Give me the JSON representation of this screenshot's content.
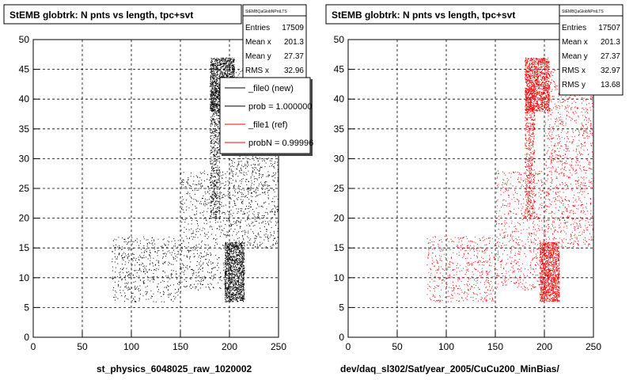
{
  "chart_data": [
    {
      "type": "scatter",
      "title": "StEMB globtrk: N pnts vs length, tpc+svt",
      "xlabel": "st_physics_6048025_raw_1020002",
      "xlim": [
        0,
        250
      ],
      "ylim": [
        0,
        50
      ],
      "xticks": [
        "0",
        "50",
        "100",
        "150",
        "200",
        "250"
      ],
      "yticks": [
        "0",
        "5",
        "10",
        "15",
        "20",
        "25",
        "30",
        "35",
        "40",
        "45",
        "50"
      ],
      "grid": true,
      "marker_color": "#000000",
      "stats": {
        "name": "StEMBQaGlobNPntLTS",
        "rows": [
          {
            "label": "Entries",
            "value": "17509"
          },
          {
            "label": "Mean x",
            "value": "201.3"
          },
          {
            "label": "Mean y",
            "value": "27.37"
          },
          {
            "label": "RMS x",
            "value": "32.96"
          }
        ]
      },
      "legend": {
        "placement": "top-right",
        "entries": [
          {
            "label": "_file0 (new)",
            "color": "#000000"
          },
          {
            "label": "prob = 1.000000",
            "color": "#000000"
          },
          {
            "label": "_file1 (ref)",
            "color": "#ff0000"
          },
          {
            "label": "probN = 0.99996",
            "color": "#ff0000"
          }
        ]
      },
      "clusters": [
        {
          "x": [
            180,
            205
          ],
          "y": [
            38,
            47
          ],
          "density": 0.9,
          "n": 1300
        },
        {
          "x": [
            180,
            190
          ],
          "y": [
            20,
            42
          ],
          "density": 0.6,
          "n": 600
        },
        {
          "x": [
            195,
            215
          ],
          "y": [
            6,
            16
          ],
          "density": 0.95,
          "n": 1200
        },
        {
          "x": [
            200,
            250
          ],
          "y": [
            15,
            45
          ],
          "density": 0.4,
          "n": 1100
        },
        {
          "x": [
            150,
            200
          ],
          "y": [
            8,
            28
          ],
          "density": 0.3,
          "n": 600
        },
        {
          "x": [
            80,
            150
          ],
          "y": [
            6,
            17
          ],
          "density": 0.35,
          "n": 500
        }
      ]
    },
    {
      "type": "scatter",
      "title": "StEMB globtrk: N pnts vs length, tpc+svt",
      "xlabel": "dev/daq_sl302/Sat/year_2005/CuCu200_MinBias/",
      "xlim": [
        0,
        250
      ],
      "ylim": [
        0,
        50
      ],
      "xticks": [
        "0",
        "50",
        "100",
        "150",
        "200",
        "250"
      ],
      "yticks": [
        "0",
        "5",
        "10",
        "15",
        "20",
        "25",
        "30",
        "35",
        "40",
        "45",
        "50"
      ],
      "grid": true,
      "marker_color": "#ff0000",
      "stats": {
        "name": "StEMBQaGlobNPntLTS",
        "rows": [
          {
            "label": "Entries",
            "value": "17507"
          },
          {
            "label": "Mean x",
            "value": "201.3"
          },
          {
            "label": "Mean y",
            "value": "27.37"
          },
          {
            "label": "RMS x",
            "value": "32.97"
          },
          {
            "label": "RMS y",
            "value": "13.68"
          }
        ]
      },
      "clusters": [
        {
          "x": [
            180,
            205
          ],
          "y": [
            38,
            47
          ],
          "density": 0.9,
          "n": 1300
        },
        {
          "x": [
            180,
            190
          ],
          "y": [
            20,
            42
          ],
          "density": 0.6,
          "n": 600
        },
        {
          "x": [
            195,
            215
          ],
          "y": [
            6,
            16
          ],
          "density": 0.95,
          "n": 1200
        },
        {
          "x": [
            200,
            250
          ],
          "y": [
            15,
            45
          ],
          "density": 0.4,
          "n": 1100
        },
        {
          "x": [
            150,
            200
          ],
          "y": [
            8,
            28
          ],
          "density": 0.3,
          "n": 600
        },
        {
          "x": [
            80,
            150
          ],
          "y": [
            6,
            17
          ],
          "density": 0.35,
          "n": 500
        }
      ]
    }
  ]
}
